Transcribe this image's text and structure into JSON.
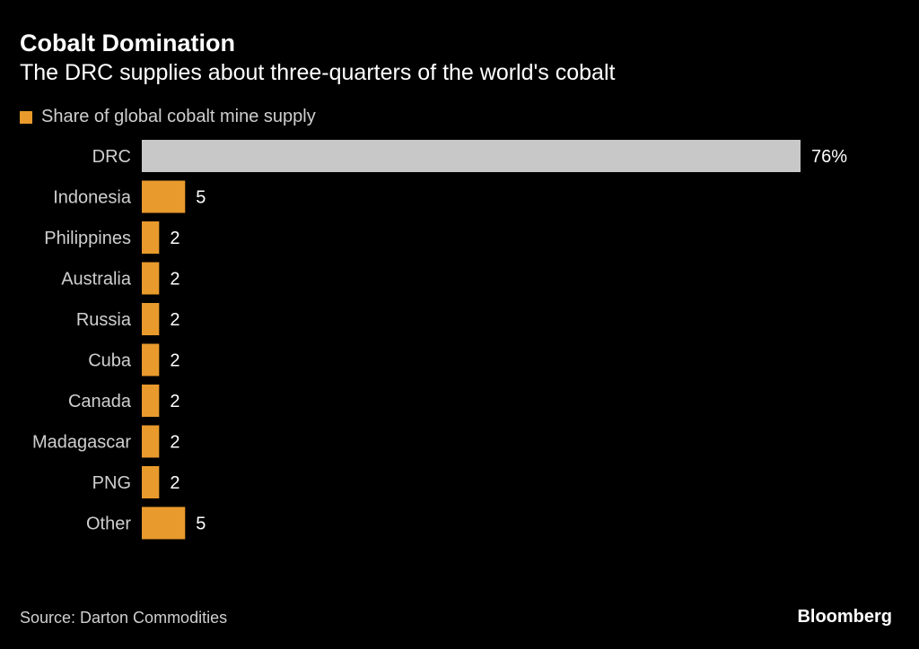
{
  "title": "Cobalt Domination",
  "subtitle": "The DRC supplies about three-quarters of the world's cobalt",
  "legend": {
    "label": "Share of global cobalt mine supply",
    "color": "#e89a2c"
  },
  "source": "Source: Darton Commodities",
  "brand": "Bloomberg",
  "colors": {
    "background": "#000000",
    "bar": "#e89a2c",
    "highlight_bar": "#c8c8c8",
    "category_label": "#cfcfcf",
    "value_label": "#ffffff"
  },
  "chart_data": {
    "type": "bar",
    "orientation": "horizontal",
    "categories": [
      "DRC",
      "Indonesia",
      "Philippines",
      "Australia",
      "Russia",
      "Cuba",
      "Canada",
      "Madagascar",
      "PNG",
      "Other"
    ],
    "values": [
      76,
      5,
      2,
      2,
      2,
      2,
      2,
      2,
      2,
      5
    ],
    "value_labels": [
      "76%",
      "5",
      "2",
      "2",
      "2",
      "2",
      "2",
      "2",
      "2",
      "5"
    ],
    "highlight_category": "DRC",
    "title": "Cobalt Domination",
    "subtitle": "The DRC supplies about three-quarters of the world's cobalt",
    "legend": [
      "Share of global cobalt mine supply"
    ],
    "legend_position": "top-left",
    "xlim": [
      0,
      76
    ],
    "grid": false
  }
}
